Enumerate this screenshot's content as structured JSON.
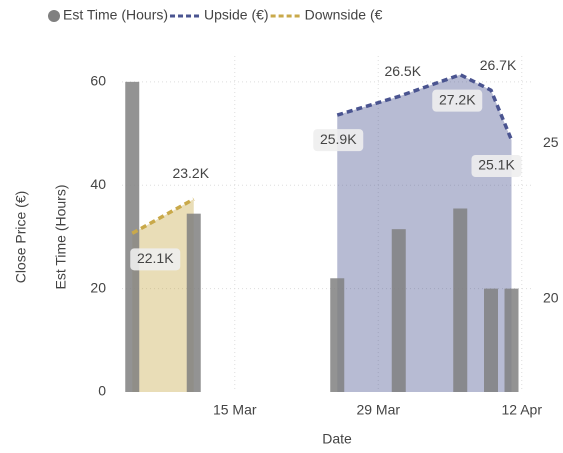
{
  "chart_data": {
    "type": "combo",
    "legend": "top",
    "x_label": "Date",
    "y_label": "Est Time (Hours)",
    "y2_label": "Close Price (€)",
    "x": [
      "5 Mar",
      "11 Mar",
      "25 Mar",
      "31 Mar",
      "6 Apr",
      "9 Apr",
      "11 Apr"
    ],
    "xlim": [
      "4 Mar",
      "13 Apr"
    ],
    "xticks": [
      "15 Mar",
      "29 Mar",
      "12 Apr"
    ],
    "ylim": [
      0,
      65
    ],
    "yticks": [
      0,
      20,
      40,
      60
    ],
    "y2lim": [
      17,
      27.8
    ],
    "y2ticks": [
      20,
      25
    ],
    "grid": true,
    "series": [
      {
        "name": "Est Time (Hours)",
        "kind": "bar",
        "color": "#808080",
        "values": [
          60,
          34.5,
          22,
          31.5,
          35.5,
          20,
          20
        ]
      },
      {
        "name": "Upside (€)",
        "kind": "area",
        "axis": "y2",
        "color": "#4a5490",
        "values": [
          null,
          null,
          25.9,
          26.5,
          27.2,
          26.7,
          25.1
        ],
        "value_labels": [
          null,
          null,
          "25.9K",
          "26.5K",
          "27.2K",
          "26.7K",
          "25.1K"
        ]
      },
      {
        "name": "Downside (€",
        "kind": "area",
        "axis": "y2",
        "color": "#c9a94a",
        "values": [
          22.1,
          23.2,
          null,
          null,
          null,
          null,
          null
        ],
        "value_labels": [
          "22.1K",
          "23.2K",
          null,
          null,
          null,
          null,
          null
        ]
      }
    ]
  }
}
